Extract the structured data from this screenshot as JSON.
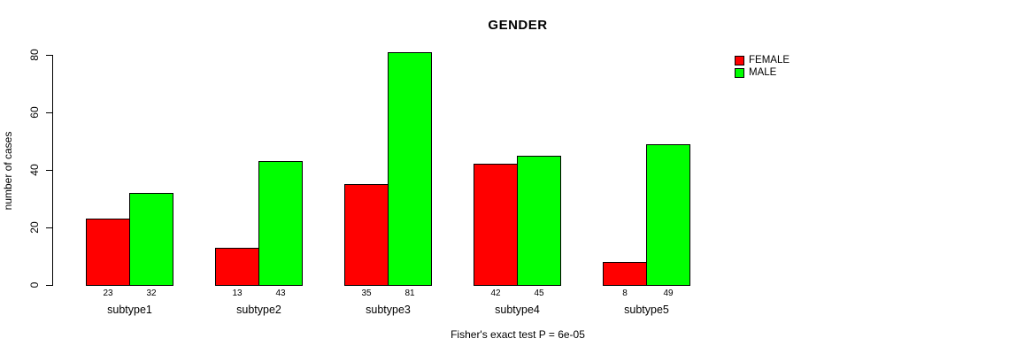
{
  "chart_data": {
    "type": "bar",
    "title": "GENDER",
    "xlabel": "",
    "ylabel": "number of cases",
    "categories": [
      "subtype1",
      "subtype2",
      "subtype3",
      "subtype4",
      "subtype5"
    ],
    "series": [
      {
        "name": "FEMALE",
        "color": "#FF0000",
        "values": [
          23,
          13,
          35,
          42,
          8
        ]
      },
      {
        "name": "MALE",
        "color": "#00FF00",
        "values": [
          32,
          43,
          81,
          45,
          49
        ]
      }
    ],
    "y_ticks": [
      0,
      20,
      40,
      60,
      80
    ],
    "ylim": [
      0,
      85
    ],
    "bar_value_labels": [
      [
        23,
        32
      ],
      [
        13,
        43
      ],
      [
        35,
        81
      ],
      [
        42,
        45
      ],
      [
        8,
        49
      ]
    ],
    "grid": false,
    "legend_position": "top-right",
    "annotation": "Fisher's exact test P = 6e-05"
  }
}
